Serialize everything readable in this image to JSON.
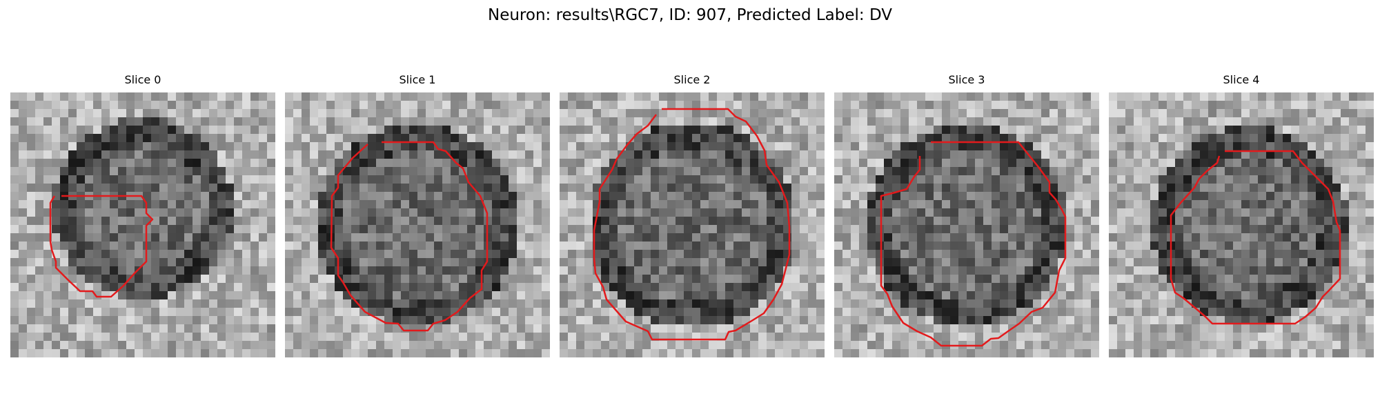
{
  "figure": {
    "title": "Neuron: results\\RGC7, ID: 907, Predicted Label: DV",
    "contour_color": "#e31a1c"
  },
  "panels": [
    {
      "title": "Slice 0"
    },
    {
      "title": "Slice 1"
    },
    {
      "title": "Slice 2"
    },
    {
      "title": "Slice 3"
    },
    {
      "title": "Slice 4"
    }
  ]
}
